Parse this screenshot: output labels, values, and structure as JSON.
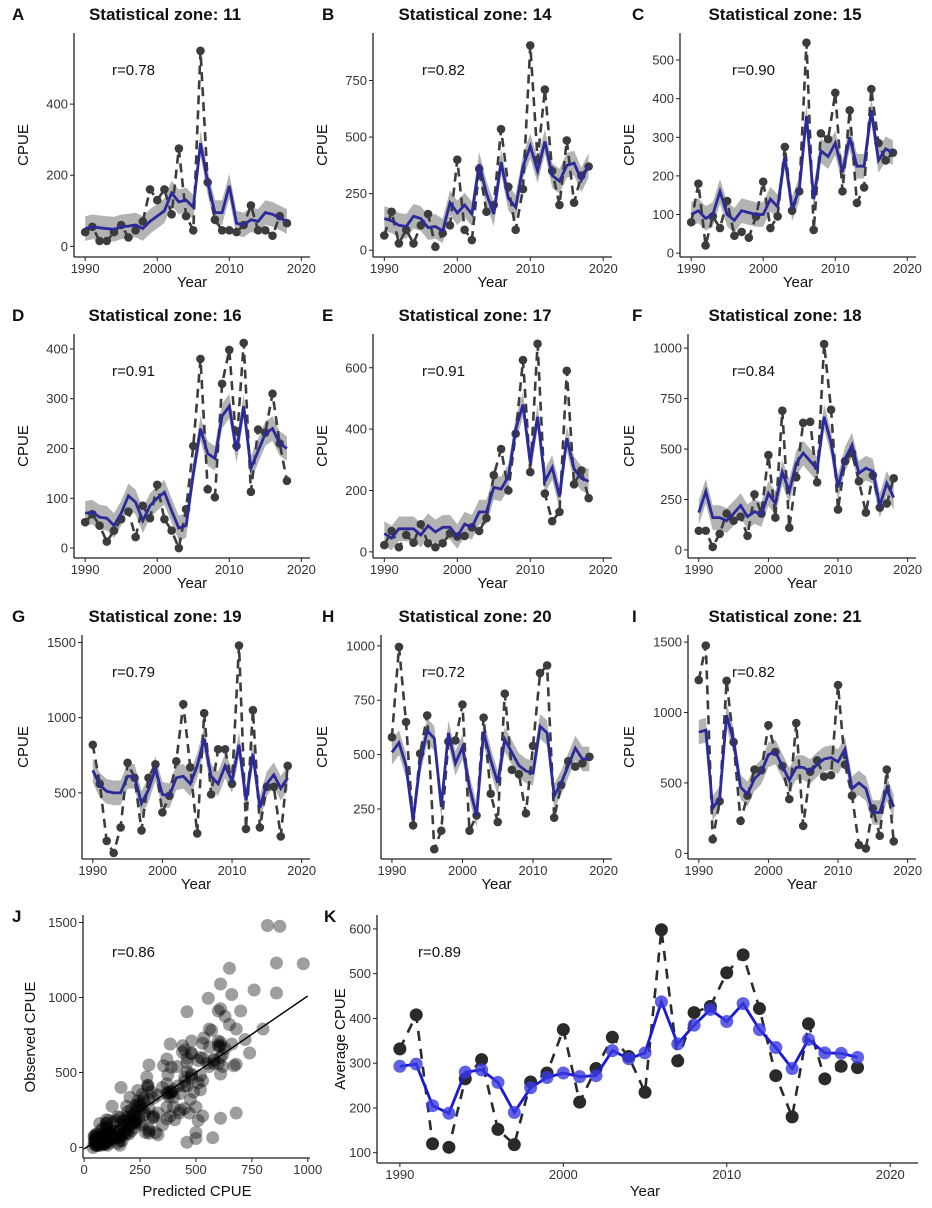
{
  "chart_data": {
    "years": [
      1990,
      1991,
      1992,
      1993,
      1994,
      1995,
      1996,
      1997,
      1998,
      1999,
      2000,
      2001,
      2002,
      2003,
      2004,
      2005,
      2006,
      2007,
      2008,
      2009,
      2010,
      2011,
      2012,
      2013,
      2014,
      2015,
      2016,
      2017,
      2018
    ],
    "xticks": [
      1990,
      2000,
      2010,
      2020
    ],
    "colors": {
      "observed": "#3c3c3c",
      "predicted": "#2a2a9a",
      "ribbon": "#9a9a9a",
      "k_predicted": "#1a1ad6",
      "k_points": "#3a3ae0",
      "scatter": "#000000"
    },
    "panels": [
      {
        "type": "line",
        "letter": "A",
        "title": "Statistical zone: 11",
        "r_label": "r=0.78",
        "xlabel": "Year",
        "ylabel": "CPUE",
        "ylim": [
          -30,
          600
        ],
        "yticks": [
          0,
          200,
          400
        ],
        "observed": [
          40,
          55,
          15,
          15,
          40,
          60,
          25,
          45,
          70,
          160,
          130,
          160,
          90,
          275,
          85,
          45,
          550,
          180,
          75,
          45,
          45,
          40,
          60,
          115,
          45,
          45,
          30,
          85,
          65
        ],
        "predicted": [
          50,
          55,
          52,
          50,
          48,
          55,
          57,
          60,
          50,
          70,
          85,
          100,
          150,
          125,
          130,
          110,
          290,
          180,
          95,
          95,
          170,
          65,
          60,
          75,
          70,
          95,
          90,
          80,
          70
        ]
      },
      {
        "type": "line",
        "letter": "B",
        "title": "Statistical zone: 14",
        "r_label": "r=0.82",
        "xlabel": "Year",
        "ylabel": "CPUE",
        "ylim": [
          -30,
          960
        ],
        "yticks": [
          0,
          250,
          500,
          750
        ],
        "observed": [
          65,
          170,
          30,
          90,
          30,
          110,
          160,
          15,
          75,
          110,
          400,
          90,
          45,
          360,
          170,
          200,
          535,
          280,
          90,
          270,
          905,
          400,
          710,
          350,
          200,
          485,
          210,
          330,
          370
        ],
        "predicted": [
          140,
          130,
          110,
          105,
          150,
          140,
          100,
          105,
          85,
          210,
          165,
          200,
          160,
          380,
          250,
          160,
          390,
          230,
          190,
          370,
          460,
          350,
          480,
          330,
          305,
          375,
          385,
          310,
          375
        ]
      },
      {
        "type": "line",
        "letter": "C",
        "title": "Statistical zone: 15",
        "r_label": "r=0.90",
        "xlabel": "Year",
        "ylabel": "CPUE",
        "ylim": [
          -10,
          570
        ],
        "yticks": [
          0,
          100,
          200,
          300,
          400,
          500
        ],
        "observed": [
          80,
          180,
          20,
          95,
          65,
          135,
          45,
          55,
          40,
          95,
          185,
          65,
          95,
          275,
          110,
          160,
          545,
          60,
          310,
          295,
          415,
          160,
          370,
          130,
          170,
          425,
          285,
          240,
          260
        ],
        "predicted": [
          100,
          110,
          90,
          100,
          160,
          100,
          85,
          110,
          105,
          100,
          100,
          140,
          120,
          250,
          115,
          165,
          355,
          140,
          265,
          250,
          285,
          210,
          300,
          225,
          225,
          370,
          240,
          270,
          260
        ]
      },
      {
        "type": "line",
        "letter": "D",
        "title": "Statistical zone: 16",
        "r_label": "r=0.91",
        "xlabel": "Year",
        "ylabel": "CPUE",
        "ylim": [
          -20,
          430
        ],
        "yticks": [
          0,
          100,
          200,
          300,
          400
        ],
        "observed": [
          52,
          68,
          45,
          13,
          35,
          58,
          73,
          22,
          85,
          60,
          127,
          58,
          35,
          0,
          78,
          205,
          380,
          118,
          102,
          330,
          398,
          205,
          412,
          113,
          238,
          232,
          310,
          210,
          135
        ],
        "predicted": [
          70,
          72,
          62,
          60,
          45,
          70,
          105,
          92,
          55,
          85,
          100,
          112,
          75,
          40,
          45,
          150,
          240,
          190,
          180,
          265,
          285,
          195,
          285,
          160,
          195,
          230,
          240,
          210,
          200
        ]
      },
      {
        "type": "line",
        "letter": "E",
        "title": "Statistical zone: 17",
        "r_label": "r=0.91",
        "xlabel": "Year",
        "ylabel": "CPUE",
        "ylim": [
          -20,
          710
        ],
        "yticks": [
          0,
          200,
          400,
          600
        ],
        "observed": [
          22,
          68,
          15,
          55,
          30,
          90,
          28,
          15,
          28,
          60,
          50,
          52,
          80,
          68,
          110,
          250,
          335,
          200,
          385,
          625,
          260,
          678,
          190,
          100,
          130,
          590,
          220,
          265,
          175
        ],
        "predicted": [
          60,
          45,
          75,
          75,
          75,
          55,
          85,
          65,
          80,
          80,
          50,
          90,
          80,
          130,
          130,
          210,
          205,
          245,
          400,
          480,
          290,
          440,
          230,
          275,
          180,
          370,
          270,
          240,
          230
        ]
      },
      {
        "type": "line",
        "letter": "F",
        "title": "Statistical zone: 18",
        "r_label": "r=0.84",
        "xlabel": "Year",
        "ylabel": "CPUE",
        "ylim": [
          -40,
          1070
        ],
        "yticks": [
          0,
          250,
          500,
          750,
          1000
        ],
        "observed": [
          95,
          95,
          15,
          80,
          180,
          145,
          165,
          70,
          275,
          180,
          470,
          160,
          690,
          110,
          360,
          630,
          635,
          335,
          1020,
          695,
          200,
          440,
          480,
          340,
          185,
          370,
          210,
          230,
          355
        ],
        "predicted": [
          185,
          290,
          160,
          160,
          145,
          180,
          220,
          165,
          190,
          175,
          280,
          230,
          385,
          290,
          430,
          480,
          440,
          400,
          660,
          530,
          310,
          450,
          520,
          380,
          405,
          390,
          220,
          330,
          260
        ]
      },
      {
        "type": "line",
        "letter": "G",
        "title": "Statistical zone: 19",
        "r_label": "r=0.79",
        "xlabel": "Year",
        "ylabel": "CPUE",
        "ylim": [
          60,
          1550
        ],
        "yticks": [
          500,
          1000,
          1500
        ],
        "observed": [
          820,
          560,
          180,
          100,
          270,
          700,
          600,
          250,
          600,
          690,
          370,
          480,
          710,
          1090,
          670,
          230,
          1030,
          490,
          790,
          790,
          560,
          1480,
          260,
          1050,
          270,
          540,
          540,
          210,
          680
        ],
        "predicted": [
          650,
          550,
          510,
          500,
          500,
          610,
          610,
          430,
          520,
          660,
          490,
          480,
          600,
          610,
          560,
          680,
          860,
          610,
          560,
          680,
          580,
          820,
          450,
          760,
          400,
          560,
          620,
          530,
          600
        ]
      },
      {
        "type": "line",
        "letter": "H",
        "title": "Statistical zone: 20",
        "r_label": "r=0.72",
        "xlabel": "Year",
        "ylabel": "CPUE",
        "ylim": [
          20,
          1050
        ],
        "yticks": [
          250,
          500,
          750,
          1000
        ],
        "observed": [
          580,
          995,
          650,
          175,
          505,
          680,
          65,
          150,
          560,
          565,
          730,
          150,
          220,
          670,
          320,
          190,
          780,
          430,
          410,
          230,
          540,
          875,
          910,
          210,
          360,
          470,
          445,
          460,
          490
        ],
        "predicted": [
          510,
          555,
          450,
          200,
          460,
          610,
          575,
          260,
          600,
          460,
          535,
          350,
          220,
          605,
          475,
          370,
          570,
          510,
          450,
          425,
          415,
          630,
          600,
          310,
          370,
          450,
          530,
          480,
          480
        ]
      },
      {
        "type": "line",
        "letter": "I",
        "title": "Statistical zone: 21",
        "r_label": "r=0.82",
        "xlabel": "Year",
        "ylabel": "CPUE",
        "ylim": [
          -40,
          1550
        ],
        "yticks": [
          0,
          500,
          1000,
          1500
        ],
        "observed": [
          1230,
          1475,
          100,
          370,
          1225,
          790,
          230,
          410,
          595,
          590,
          910,
          720,
          620,
          385,
          925,
          195,
          580,
          660,
          545,
          555,
          1195,
          630,
          410,
          60,
          35,
          320,
          125,
          595,
          85
        ],
        "predicted": [
          860,
          875,
          320,
          390,
          980,
          800,
          470,
          420,
          530,
          580,
          700,
          720,
          620,
          520,
          610,
          610,
          580,
          630,
          670,
          680,
          650,
          740,
          460,
          500,
          460,
          290,
          290,
          460,
          330
        ]
      }
    ],
    "scatter": {
      "type": "scatter",
      "letter": "J",
      "r_label": "r=0.86",
      "xlabel": "Predicted CPUE",
      "ylabel": "Observed CPUE",
      "xlim": [
        -5,
        1010
      ],
      "ylim": [
        -70,
        1550
      ],
      "xticks": [
        0,
        250,
        500,
        750,
        1000
      ],
      "yticks": [
        0,
        500,
        1000,
        1500
      ],
      "fit_line": [
        [
          0,
          -10
        ],
        [
          1000,
          1010
        ]
      ]
    },
    "average": {
      "type": "line",
      "letter": "K",
      "r_label": "r=0.89",
      "xlabel": "Year",
      "ylabel": "Average CPUE",
      "xlim": [
        1988.6,
        2021.7
      ],
      "ylim": [
        77,
        631
      ],
      "yticks": [
        100,
        200,
        300,
        400,
        500,
        600
      ],
      "observed": [
        332,
        408,
        120,
        112,
        265,
        308,
        152,
        118,
        258,
        278,
        375,
        213,
        288,
        358,
        315,
        235,
        598,
        305,
        413,
        427,
        502,
        542,
        422,
        272,
        180,
        388,
        265,
        293,
        290
      ],
      "predicted": [
        293,
        298,
        205,
        188,
        280,
        285,
        257,
        190,
        245,
        268,
        278,
        270,
        272,
        328,
        310,
        323,
        437,
        343,
        385,
        420,
        393,
        433,
        375,
        335,
        288,
        353,
        323,
        322,
        313
      ]
    }
  }
}
